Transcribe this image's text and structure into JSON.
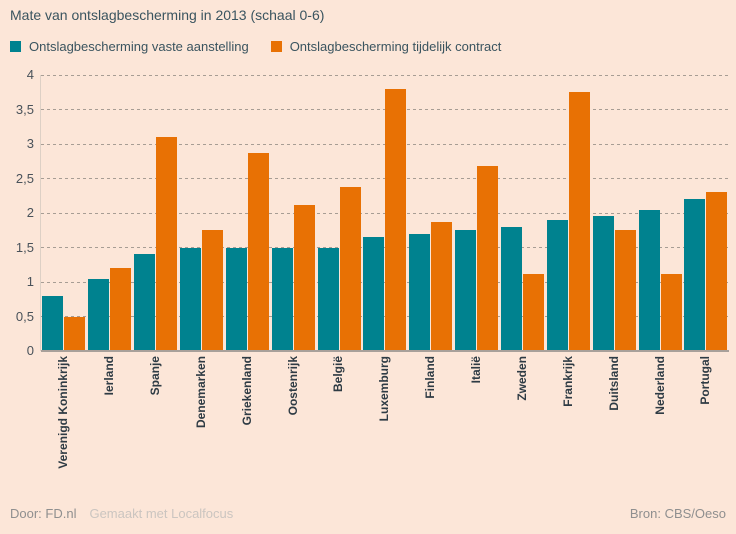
{
  "title": "Mate van ontslagbescherming in 2013 (schaal 0-6)",
  "legend": [
    {
      "label": "Ontslagbescherming vaste aanstelling",
      "color": "#00828f"
    },
    {
      "label": "Ontslagbescherming tijdelijk contract",
      "color": "#e87104"
    }
  ],
  "footer": {
    "left_primary": "Door: FD.nl",
    "left_secondary": "Gemaakt met Localfocus",
    "right": "Bron: CBS/Oeso"
  },
  "colors": {
    "background": "#fce6d8",
    "series_vast": "#00828f",
    "series_tijdelijk": "#e87104",
    "gridline": "#a79d94",
    "axis_line": "#a8a09a",
    "title_text": "#3a545f",
    "category_text": "#2e3b44",
    "tick_text": "#49525a",
    "footer_text": "#8f8f8f"
  },
  "chart_data": {
    "type": "bar",
    "title": "Mate van ontslagbescherming in 2013 (schaal 0-6)",
    "categories": [
      "Verenigd Koninkrijk",
      "Ierland",
      "Spanje",
      "Denemarken",
      "Griekenland",
      "Oostenrijk",
      "België",
      "Luxemburg",
      "Finland",
      "Italië",
      "Zweden",
      "Frankrijk",
      "Duitsland",
      "Nederland",
      "Portugal"
    ],
    "series": [
      {
        "name": "Ontslagbescherming vaste aanstelling",
        "color": "#00828f",
        "values": [
          0.8,
          1.05,
          1.4,
          1.5,
          1.5,
          1.5,
          1.5,
          1.65,
          1.7,
          1.75,
          1.8,
          1.9,
          1.95,
          2.05,
          2.2
        ]
      },
      {
        "name": "Ontslagbescherming tijdelijk contract",
        "color": "#e87104",
        "values": [
          0.5,
          1.2,
          3.1,
          1.75,
          2.87,
          2.12,
          2.38,
          3.8,
          1.87,
          2.68,
          1.12,
          3.75,
          1.75,
          1.12,
          2.3
        ]
      }
    ],
    "xlabel": "",
    "ylabel": "",
    "ylim": [
      0,
      4
    ],
    "yticks": [
      0,
      0.5,
      1,
      1.5,
      2,
      2.5,
      3,
      3.5,
      4
    ],
    "ytick_labels": [
      "0",
      "0,5",
      "1",
      "1,5",
      "2",
      "2,5",
      "3",
      "3,5",
      "4"
    ],
    "grid": "horizontal-dashed",
    "legend_position": "top-left",
    "x_label_rotation": -90
  }
}
